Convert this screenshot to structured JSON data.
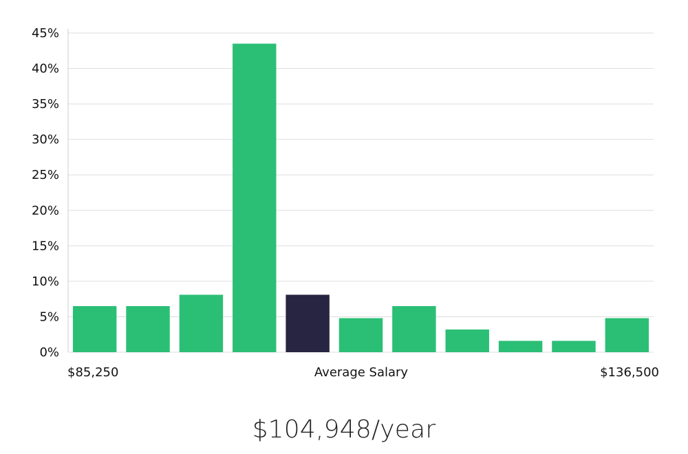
{
  "chart_data": {
    "type": "bar",
    "ylim": [
      0,
      45
    ],
    "y_ticks": [
      "0%",
      "5%",
      "10%",
      "15%",
      "20%",
      "25%",
      "30%",
      "35%",
      "40%",
      "45%"
    ],
    "y_tick_values": [
      0,
      5,
      10,
      15,
      20,
      25,
      30,
      35,
      40,
      45
    ],
    "values": [
      6.5,
      6.5,
      8.1,
      43.5,
      8.1,
      4.8,
      6.5,
      3.2,
      1.6,
      1.6,
      4.8
    ],
    "highlight_index": 4,
    "x_min_label": "$85,250",
    "x_mid_label": "Average Salary",
    "x_max_label": "$136,500",
    "grid": true,
    "colors": {
      "bar": "#2bbf76",
      "highlight": "#272541",
      "grid": "#dddddd",
      "axis": "#cccccc"
    }
  },
  "average_salary_text": "$104,948/year"
}
